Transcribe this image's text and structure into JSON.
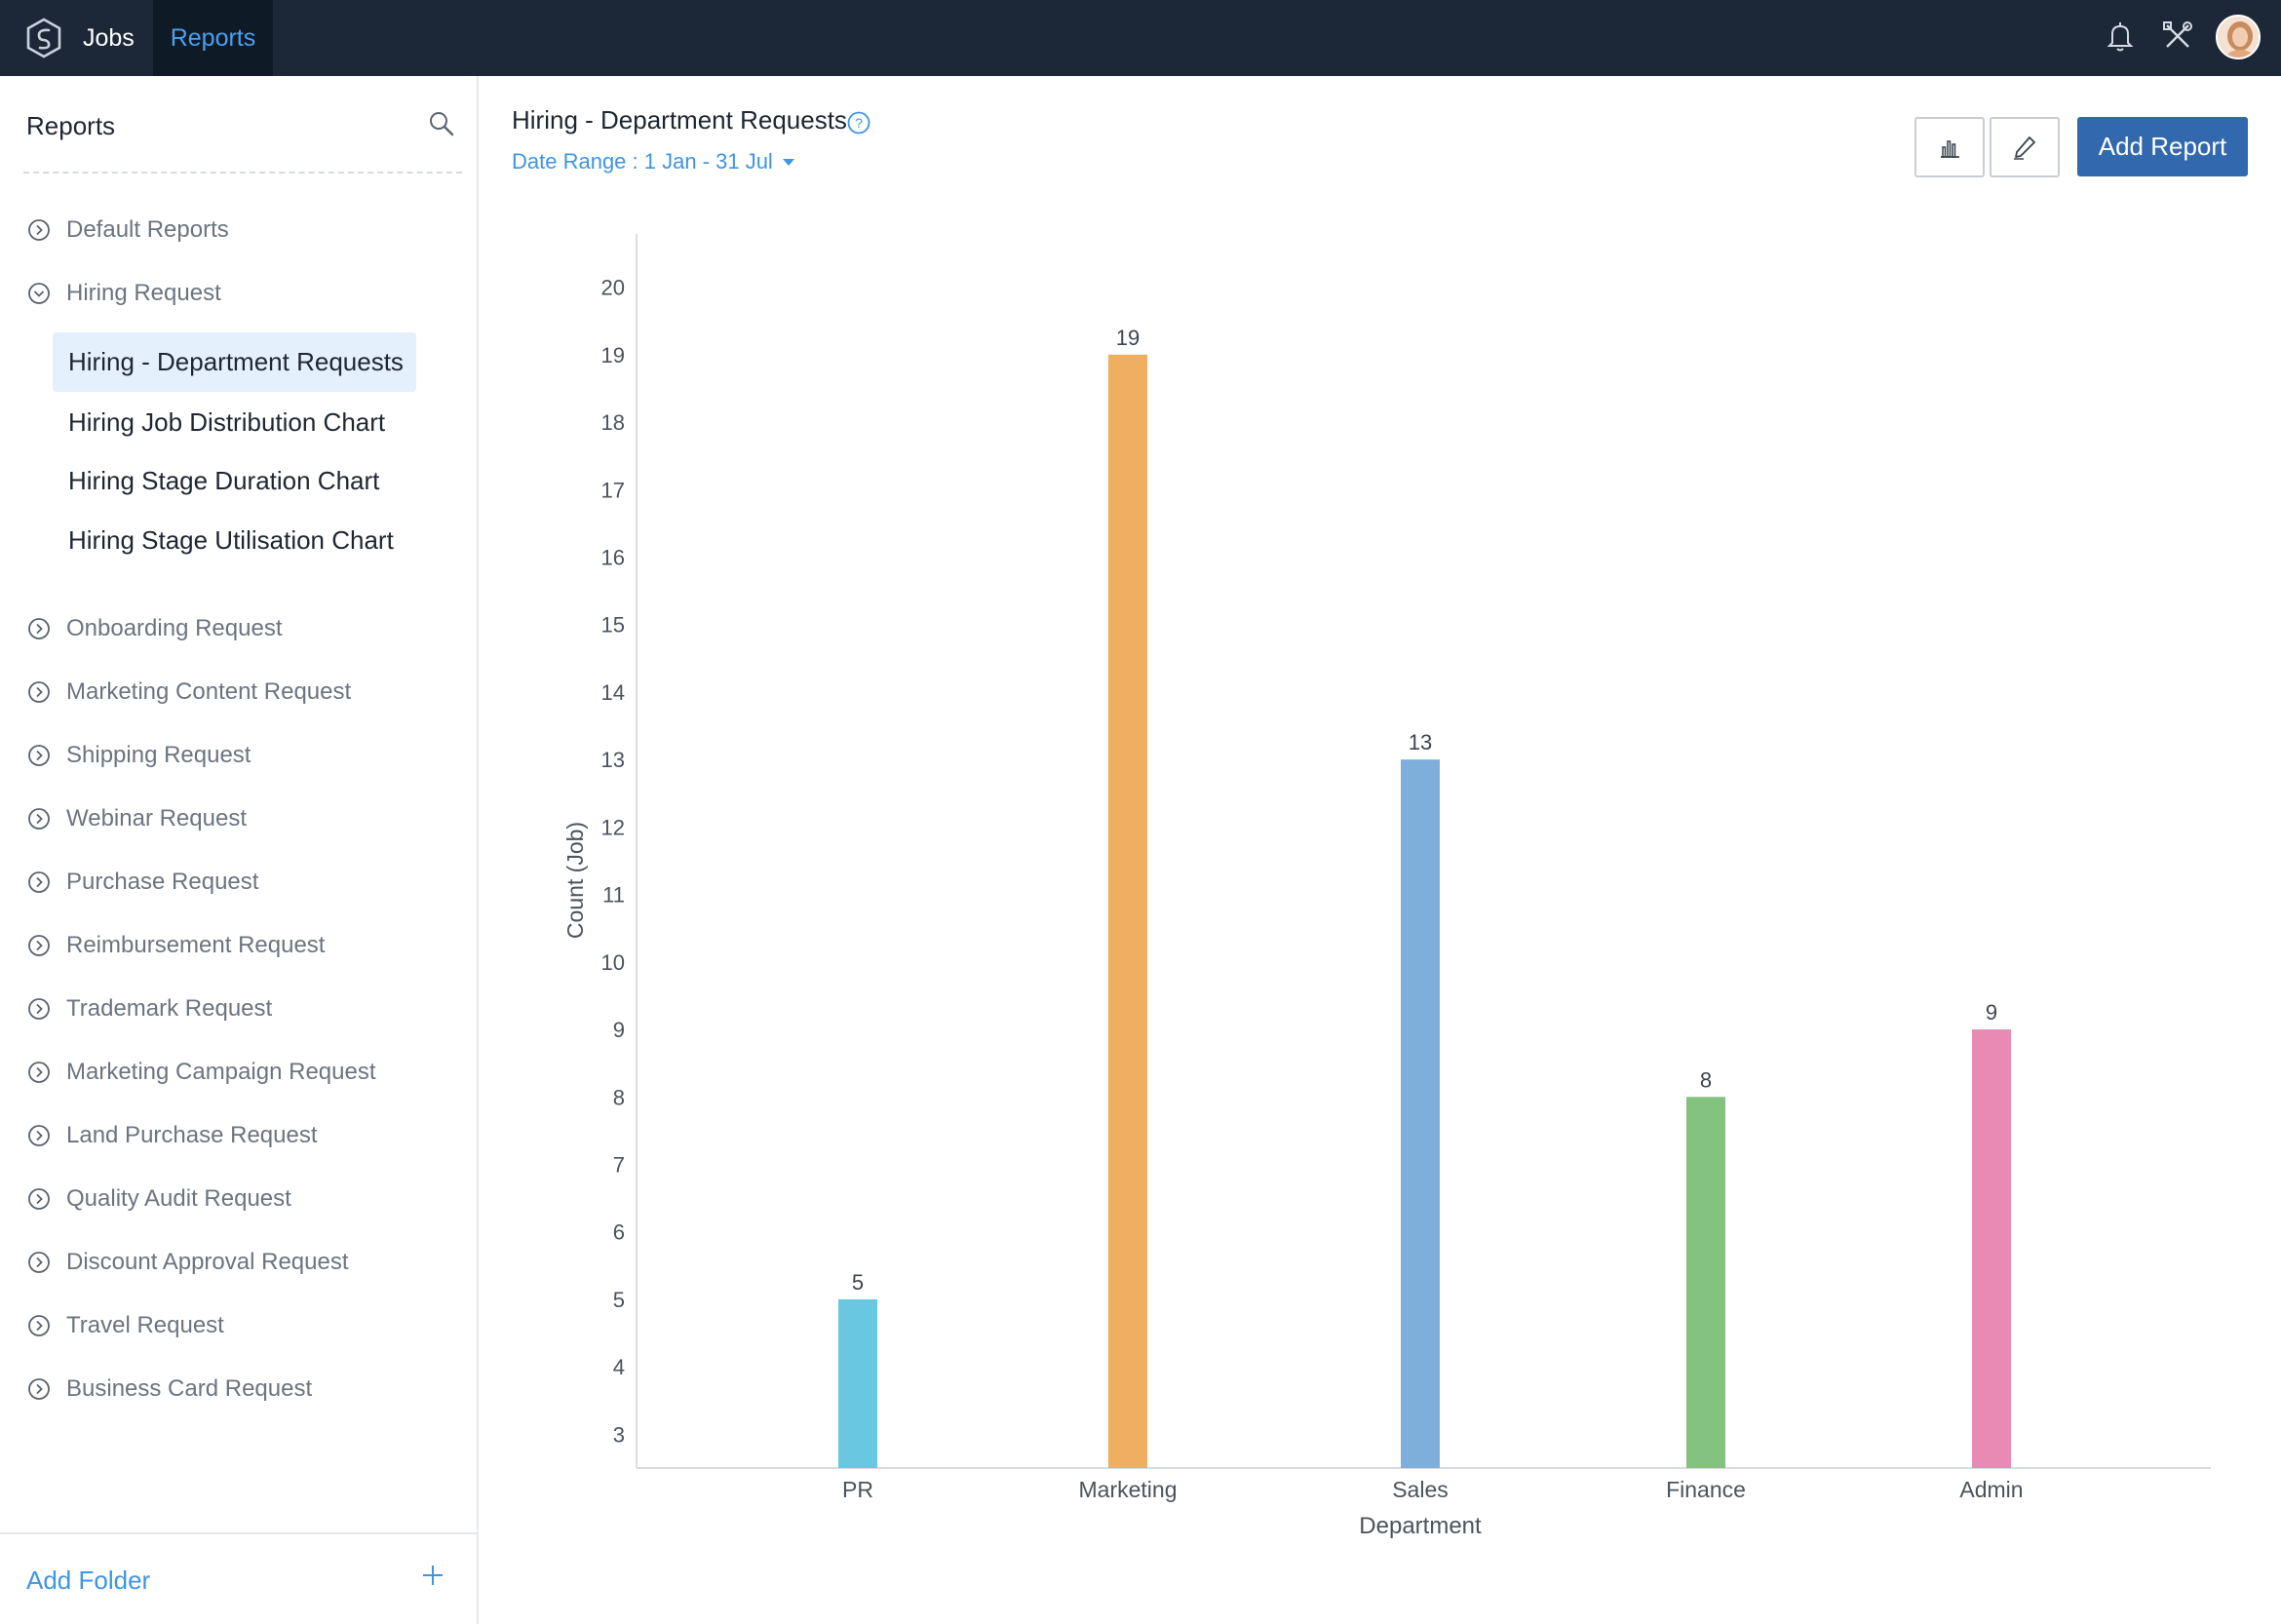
{
  "topbar": {
    "tabs": [
      {
        "label": "Jobs"
      },
      {
        "label": "Reports"
      }
    ],
    "icons": [
      "bell-icon",
      "tools-icon"
    ],
    "colors": {
      "background": "#1c2838",
      "active_tab": "#0f1a27",
      "active_text": "#4aa0ee"
    }
  },
  "sidebar": {
    "title": "Reports",
    "folders_top": [
      {
        "label": "Default Reports",
        "expanded": false
      },
      {
        "label": "Hiring Request",
        "expanded": true
      }
    ],
    "reports": [
      {
        "label": "Hiring - Department Requests",
        "active": true
      },
      {
        "label": "Hiring Job Distribution Chart",
        "active": false
      },
      {
        "label": "Hiring Stage Duration Chart",
        "active": false
      },
      {
        "label": "Hiring Stage Utilisation Chart",
        "active": false
      }
    ],
    "folders": [
      {
        "label": "Onboarding Request"
      },
      {
        "label": "Marketing Content Request"
      },
      {
        "label": "Shipping Request"
      },
      {
        "label": "Webinar Request"
      },
      {
        "label": "Purchase Request"
      },
      {
        "label": "Reimbursement Request"
      },
      {
        "label": "Trademark Request"
      },
      {
        "label": "Marketing Campaign Request"
      },
      {
        "label": "Land Purchase Request"
      },
      {
        "label": "Quality Audit Request"
      },
      {
        "label": "Discount Approval Request"
      },
      {
        "label": "Travel Request"
      },
      {
        "label": "Business Card Request"
      }
    ],
    "add_folder_label": "Add Folder"
  },
  "main": {
    "title": "Hiring - Department Requests",
    "date_range": "Date Range : 1 Jan - 31 Jul",
    "add_report_label": "Add Report",
    "accent": "#3268ad"
  },
  "chart_data": {
    "type": "bar",
    "title": "",
    "xlabel": "Department",
    "ylabel": "Count (Job)",
    "categories": [
      "PR",
      "Marketing",
      "Sales",
      "Finance",
      "Admin"
    ],
    "values": [
      5,
      19,
      13,
      8,
      9
    ],
    "colors": [
      "#68c8e2",
      "#f0ae60",
      "#7eaedb",
      "#84c280",
      "#e88ab4"
    ],
    "ylim": [
      2.5,
      20.5
    ],
    "yticks": [
      3,
      4,
      5,
      6,
      7,
      8,
      9,
      10,
      11,
      12,
      13,
      14,
      15,
      16,
      17,
      18,
      19,
      20
    ],
    "data_labels": true,
    "grid": false,
    "legend": "none"
  }
}
